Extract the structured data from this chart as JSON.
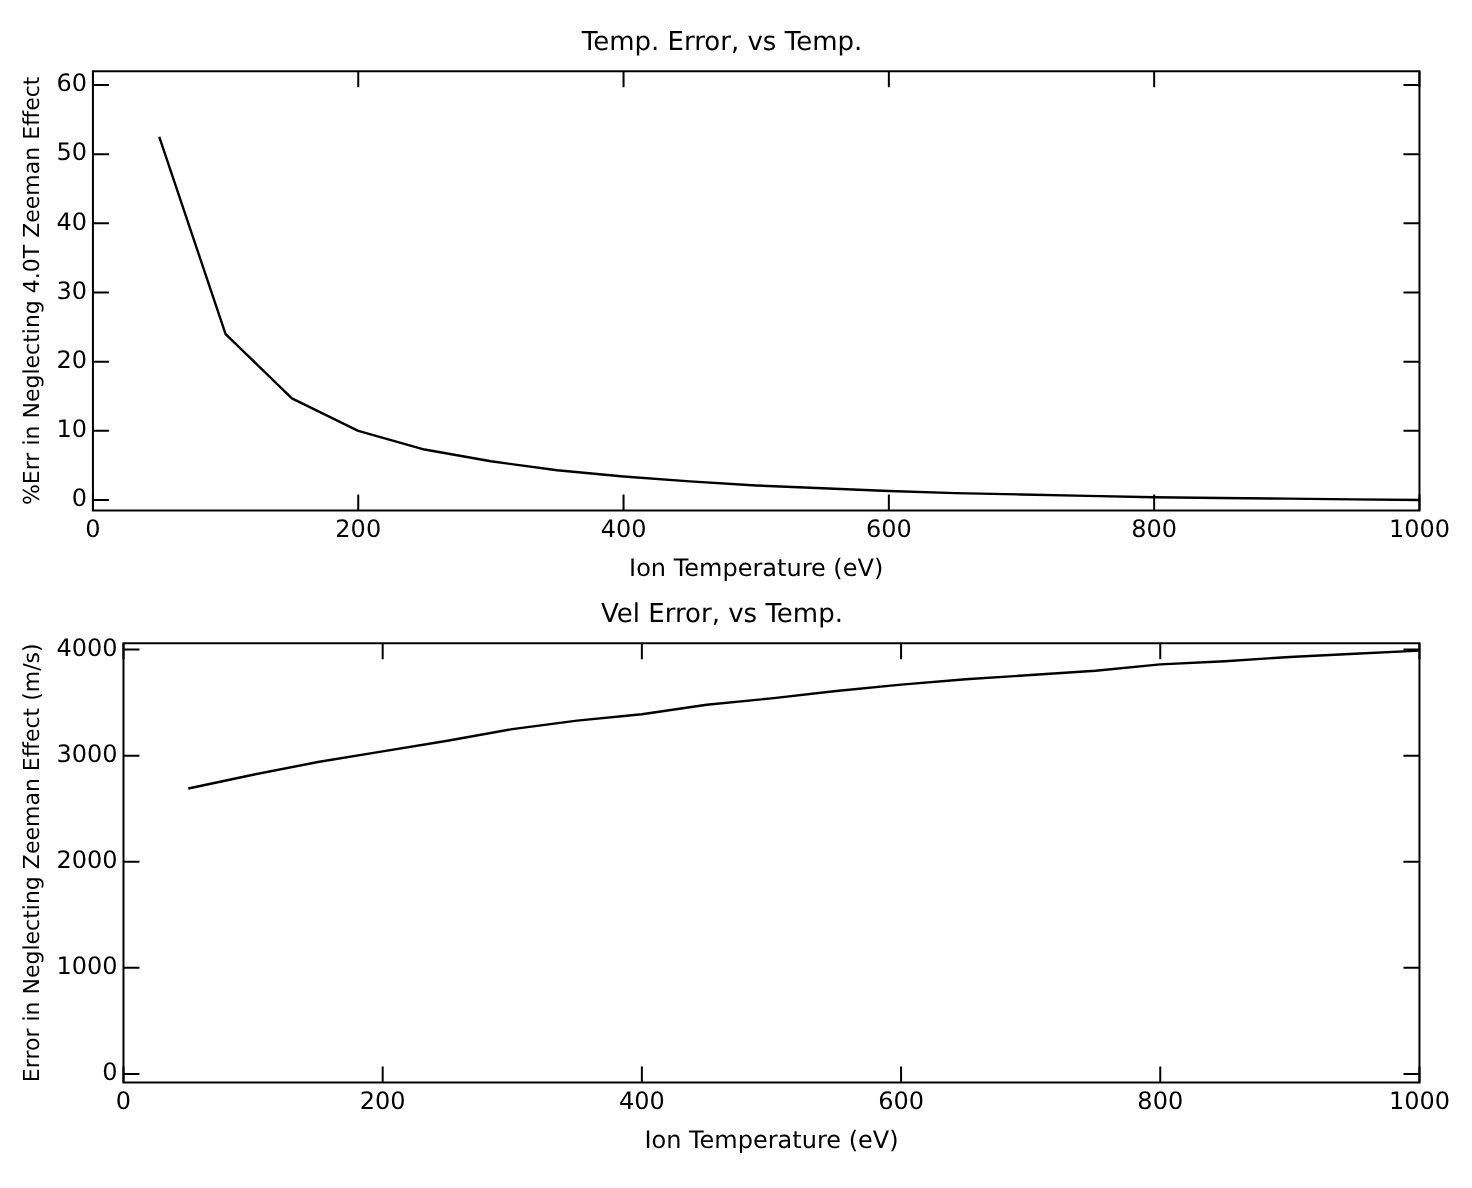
{
  "chart_data": [
    {
      "type": "line",
      "title": "Temp. Error, vs Temp.",
      "xlabel": "Ion Temperature (eV)",
      "ylabel": "%Err in Neglecting 4.0T Zeeman Effect",
      "x": [
        50,
        100,
        150,
        200,
        250,
        300,
        350,
        400,
        450,
        500,
        550,
        600,
        650,
        700,
        750,
        800,
        850,
        900,
        950,
        1000
      ],
      "series": [
        {
          "color": "#000000",
          "values": [
            52.5,
            24,
            14.7,
            10,
            7.3,
            5.6,
            4.3,
            3.4,
            2.7,
            2.1,
            1.7,
            1.3,
            1.0,
            0.8,
            0.6,
            0.4,
            0.3,
            0.2,
            0.1,
            0
          ]
        }
      ],
      "xlim": [
        0,
        1000
      ],
      "xticks": [
        0,
        200,
        400,
        600,
        800,
        1000
      ],
      "ylim": [
        -1.5,
        62
      ],
      "yticks": [
        0,
        10,
        20,
        30,
        40,
        50,
        60
      ],
      "grid": false,
      "legend": false,
      "marker": "none",
      "line_style": "solid"
    },
    {
      "type": "line",
      "title": "Vel Error, vs Temp.",
      "xlabel": "Ion Temperature (eV)",
      "ylabel": "Error in Neglecting Zeeman Effect (m/s)",
      "x": [
        50,
        100,
        150,
        200,
        250,
        300,
        350,
        400,
        450,
        500,
        550,
        600,
        650,
        700,
        750,
        800,
        850,
        900,
        950,
        1000
      ],
      "series": [
        {
          "color": "#000000",
          "values": [
            2690,
            2820,
            2940,
            3040,
            3140,
            3250,
            3330,
            3390,
            3480,
            3540,
            3610,
            3670,
            3720,
            3760,
            3800,
            3860,
            3890,
            3930,
            3960,
            3990
          ]
        }
      ],
      "xlim": [
        0,
        1000
      ],
      "xticks": [
        0,
        200,
        400,
        600,
        800,
        1000
      ],
      "ylim": [
        -80,
        4060
      ],
      "yticks": [
        0,
        1000,
        2000,
        3000,
        4000
      ],
      "grid": false,
      "legend": false,
      "marker": "none",
      "line_style": "solid"
    }
  ]
}
